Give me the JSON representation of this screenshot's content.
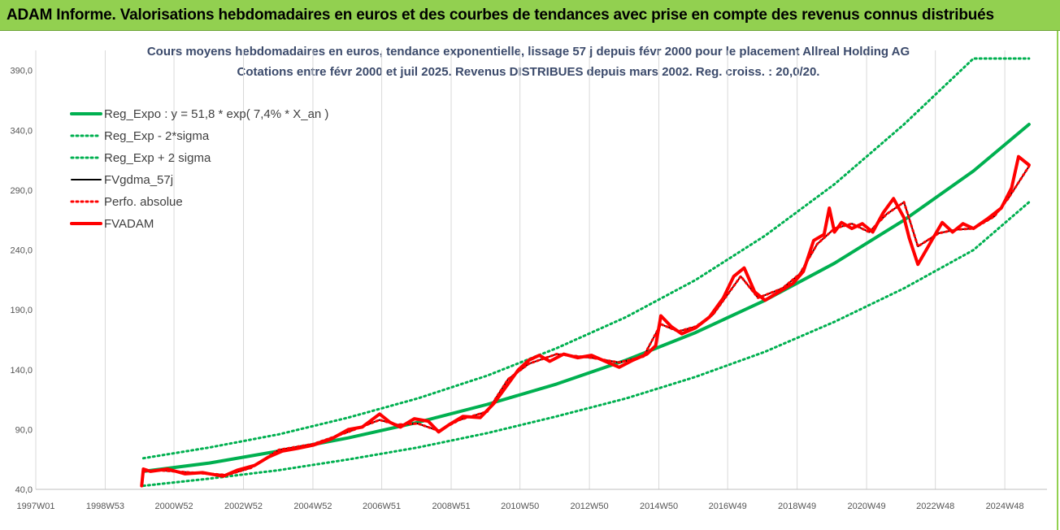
{
  "banner": {
    "title": "ADAM Informe. Valorisations hebdomadaires en euros et des courbes de tendances avec prise en compte des revenus connus distribués"
  },
  "chart_data": {
    "type": "line",
    "title": "Cours moyens hebdomadaires en euros, tendance exponentielle, lissage 57 j depuis févr 2000 pour le placement Allreal Holding AG",
    "subtitle": "Cotations entre févr 2000 et juil 2025. Revenus DISTRIBUES depuis mars 2002. Reg. croiss. : 20,0/20.",
    "xlabel": "",
    "ylabel": "",
    "x_ticks": [
      "1997W01",
      "1998W53",
      "2000W52",
      "2002W52",
      "2004W52",
      "2006W51",
      "2008W51",
      "2010W50",
      "2012W50",
      "2014W50",
      "2016W49",
      "2018W49",
      "2020W49",
      "2022W48",
      "2024W48"
    ],
    "y_ticks": [
      "40,0",
      "90,0",
      "140,0",
      "190,0",
      "240,0",
      "290,0",
      "340,0",
      "390,0"
    ],
    "xlim": [
      1997.0,
      2025.65
    ],
    "ylim": [
      40,
      400
    ],
    "grid": "vertical",
    "legend_position": "top-left",
    "colors": {
      "trend": "#00b050",
      "smoothed": "#000000",
      "price": "#ff0000",
      "banner": "#92d050"
    },
    "series": [
      {
        "name": "Reg_Expo : y = 51,8 * exp( 7,4% *  X_an )",
        "style": "solid-thick",
        "color": "#00b050",
        "x": [
          2000.1,
          2002.0,
          2004.0,
          2006.0,
          2008.0,
          2010.0,
          2012.0,
          2014.0,
          2016.0,
          2018.0,
          2020.0,
          2022.0,
          2024.0,
          2025.6
        ],
        "y": [
          55.0,
          62.0,
          72.0,
          83.0,
          96.0,
          111.0,
          128.0,
          148.0,
          171.0,
          198.0,
          229.0,
          265.0,
          306.0,
          345.0
        ]
      },
      {
        "name": "Reg_Exp - 2*sigma",
        "style": "dotted",
        "color": "#00b050",
        "x": [
          2000.1,
          2002.0,
          2004.0,
          2006.0,
          2008.0,
          2010.0,
          2012.0,
          2014.0,
          2016.0,
          2018.0,
          2020.0,
          2022.0,
          2024.0,
          2025.6
        ],
        "y": [
          43.0,
          49.0,
          56.0,
          65.0,
          75.0,
          87.0,
          101.0,
          116.0,
          134.0,
          155.0,
          180.0,
          208.0,
          240.0,
          280.0
        ]
      },
      {
        "name": "Reg_Exp + 2 sigma",
        "style": "dotted",
        "color": "#00b050",
        "x": [
          2000.1,
          2002.0,
          2004.0,
          2006.0,
          2008.0,
          2010.0,
          2012.0,
          2014.0,
          2016.0,
          2018.0,
          2020.0,
          2022.0,
          2024.0,
          2025.6
        ],
        "y": [
          66.0,
          75.0,
          86.0,
          100.0,
          116.0,
          135.0,
          158.0,
          184.0,
          215.0,
          252.0,
          295.0,
          345.0,
          400.0,
          400.0
        ]
      },
      {
        "name": "FVgdma_57j",
        "style": "solid",
        "color": "#000000",
        "x": [
          2000.1,
          2000.5,
          2001.5,
          2002.5,
          2003.2,
          2004.0,
          2005.0,
          2006.0,
          2006.9,
          2007.4,
          2008.0,
          2008.6,
          2009.2,
          2010.0,
          2010.6,
          2011.2,
          2012.0,
          2013.0,
          2013.8,
          2014.5,
          2015.0,
          2015.5,
          2016.0,
          2016.5,
          2017.3,
          2017.8,
          2018.5,
          2019.0,
          2019.5,
          2020.0,
          2020.5,
          2021.0,
          2021.5,
          2022.0,
          2022.4,
          2023.0,
          2023.5,
          2024.0,
          2024.6,
          2025.0,
          2025.6
        ],
        "y": [
          55.0,
          56.0,
          54.0,
          52.0,
          58.0,
          73.0,
          78.0,
          88.0,
          98.0,
          94.0,
          95.0,
          89.0,
          98.0,
          105.0,
          132.0,
          145.0,
          153.0,
          150.0,
          146.0,
          151.0,
          178.0,
          172.0,
          176.0,
          186.0,
          218.0,
          200.0,
          208.0,
          220.0,
          245.0,
          258.0,
          262.0,
          255.0,
          270.0,
          280.0,
          243.0,
          254.0,
          257.0,
          258.0,
          268.0,
          283.0,
          310.0
        ]
      },
      {
        "name": "Perfo. absolue",
        "style": "dotted",
        "color": "#ff0000",
        "x": [
          2000.1,
          2000.5,
          2001.5,
          2002.5,
          2003.2,
          2004.0,
          2005.0,
          2006.0,
          2006.9,
          2007.4,
          2008.0,
          2008.6,
          2009.2,
          2010.0,
          2010.6,
          2011.2,
          2012.0,
          2013.0,
          2013.8,
          2014.5,
          2015.0,
          2015.5,
          2016.0,
          2016.5,
          2017.3,
          2017.8,
          2018.5,
          2019.0,
          2019.5,
          2020.0,
          2020.5,
          2021.0,
          2021.5,
          2022.0,
          2022.4,
          2023.0,
          2023.5,
          2024.0,
          2024.6,
          2025.0,
          2025.6
        ],
        "y": [
          55.0,
          56.0,
          54.0,
          52.0,
          58.0,
          73.0,
          78.0,
          88.0,
          98.0,
          94.0,
          95.0,
          89.0,
          98.0,
          105.0,
          132.0,
          145.0,
          153.0,
          150.0,
          146.0,
          151.0,
          178.0,
          172.0,
          176.0,
          186.0,
          218.0,
          200.0,
          208.0,
          220.0,
          245.0,
          258.0,
          262.0,
          255.0,
          270.0,
          280.0,
          243.0,
          254.0,
          257.0,
          258.0,
          268.0,
          283.0,
          310.0
        ]
      },
      {
        "name": "FVADAM",
        "style": "solid-thick",
        "color": "#ff0000",
        "x": [
          2000.05,
          2000.1,
          2000.3,
          2000.8,
          2001.3,
          2001.8,
          2002.4,
          2002.8,
          2003.3,
          2003.7,
          2004.1,
          2004.5,
          2005.0,
          2005.5,
          2006.0,
          2006.4,
          2006.9,
          2007.2,
          2007.5,
          2007.9,
          2008.3,
          2008.6,
          2008.9,
          2009.3,
          2009.8,
          2010.2,
          2010.6,
          2010.9,
          2011.2,
          2011.5,
          2011.8,
          2012.2,
          2012.6,
          2013.0,
          2013.4,
          2013.8,
          2014.2,
          2014.6,
          2014.85,
          2015.0,
          2015.3,
          2015.6,
          2016.0,
          2016.4,
          2016.8,
          2017.1,
          2017.4,
          2017.7,
          2018.0,
          2018.4,
          2018.8,
          2019.1,
          2019.4,
          2019.7,
          2019.85,
          2020.0,
          2020.2,
          2020.5,
          2020.8,
          2021.1,
          2021.4,
          2021.7,
          2022.0,
          2022.15,
          2022.4,
          2022.8,
          2023.1,
          2023.4,
          2023.7,
          2024.0,
          2024.4,
          2024.8,
          2025.1,
          2025.3,
          2025.6
        ],
        "y": [
          43.0,
          57.0,
          55.0,
          57.0,
          53.0,
          54.0,
          51.0,
          56.0,
          60.0,
          67.0,
          72.0,
          74.0,
          77.0,
          82.0,
          90.0,
          92.0,
          103.0,
          96.0,
          92.0,
          99.0,
          97.0,
          88.0,
          94.0,
          101.0,
          100.0,
          112.0,
          128.0,
          140.0,
          148.0,
          152.0,
          147.0,
          153.0,
          150.0,
          152.0,
          147.0,
          142.0,
          148.0,
          153.0,
          160.0,
          185.0,
          176.0,
          170.0,
          175.0,
          184.0,
          200.0,
          218.0,
          225.0,
          205.0,
          198.0,
          205.0,
          212.0,
          222.0,
          248.0,
          253.0,
          275.0,
          255.0,
          263.0,
          258.0,
          262.0,
          255.0,
          271.0,
          283.0,
          267.0,
          250.0,
          228.0,
          248.0,
          263.0,
          255.0,
          262.0,
          258.0,
          266.0,
          275.0,
          292.0,
          318.0,
          311.0
        ]
      }
    ]
  }
}
